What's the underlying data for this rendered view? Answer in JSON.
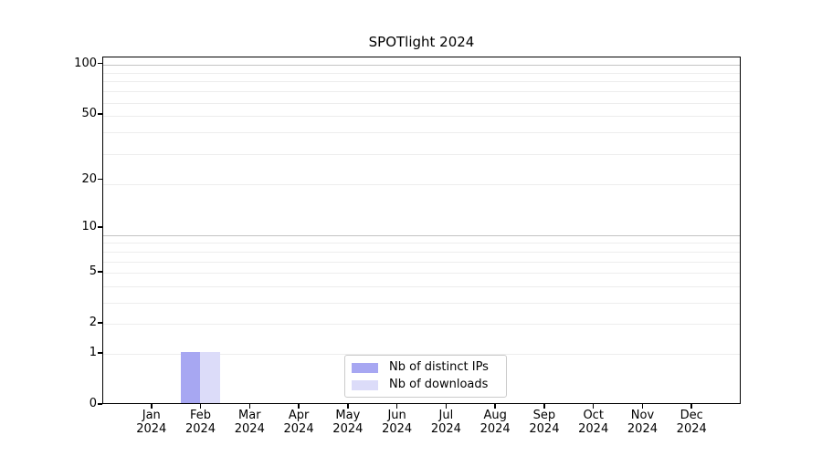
{
  "chart_data": {
    "type": "bar",
    "title": "SPOTlight 2024",
    "categories": [
      "Jan 2024",
      "Feb 2024",
      "Mar 2024",
      "Apr 2024",
      "May 2024",
      "Jun 2024",
      "Jul 2024",
      "Aug 2024",
      "Sep 2024",
      "Oct 2024",
      "Nov 2024",
      "Dec 2024"
    ],
    "month_labels": [
      "Jan",
      "Feb",
      "Mar",
      "Apr",
      "May",
      "Jun",
      "Jul",
      "Aug",
      "Sep",
      "Oct",
      "Nov",
      "Dec"
    ],
    "year_label": "2024",
    "series": [
      {
        "name": "Nb of distinct IPs",
        "color": "#a7a7f2",
        "values": [
          0,
          1,
          0,
          0,
          0,
          0,
          0,
          0,
          0,
          0,
          0,
          0
        ]
      },
      {
        "name": "Nb of downloads",
        "color": "#dcdcf9",
        "values": [
          0,
          1,
          0,
          0,
          0,
          0,
          0,
          0,
          0,
          0,
          0,
          0
        ]
      }
    ],
    "yticks": [
      0,
      1,
      2,
      5,
      10,
      20,
      50,
      100
    ],
    "ylim": [
      0,
      110
    ],
    "yscale": "log1p",
    "xlabel": "",
    "ylabel": "",
    "grid": {
      "orientation": "horizontal",
      "minor_color": "#ededed",
      "major_color": "#c4c4c4"
    },
    "legend": {
      "position": "lower center",
      "entries": [
        "Nb of distinct IPs",
        "Nb of downloads"
      ]
    },
    "colors": {
      "bar_distinct_ips": "#a7a7f2",
      "bar_downloads": "#dcdcf9",
      "axis": "#000000",
      "background": "#ffffff"
    }
  }
}
